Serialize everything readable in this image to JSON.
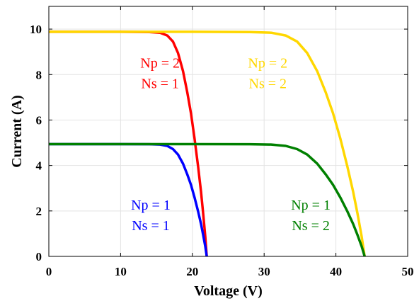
{
  "chart_data": {
    "type": "line",
    "title": "",
    "xlabel": "Voltage (V)",
    "ylabel": "Current (A)",
    "xlim": [
      0,
      50
    ],
    "ylim": [
      0,
      11
    ],
    "xticks": [
      0,
      10,
      20,
      30,
      40,
      50
    ],
    "yticks": [
      0,
      2,
      4,
      6,
      8,
      10
    ],
    "grid": true,
    "legend": "none",
    "series": [
      {
        "color": "#ff0000",
        "label_lines": [
          "Np = 2",
          "Ns = 1"
        ],
        "points": [
          [
            0,
            9.88
          ],
          [
            10,
            9.88
          ],
          [
            14,
            9.87
          ],
          [
            15.5,
            9.84
          ],
          [
            16.5,
            9.72
          ],
          [
            17.3,
            9.45
          ],
          [
            18,
            8.95
          ],
          [
            18.7,
            8.15
          ],
          [
            19.3,
            7.2
          ],
          [
            19.8,
            6.3
          ],
          [
            20.3,
            5.2
          ],
          [
            20.8,
            3.95
          ],
          [
            21.2,
            2.85
          ],
          [
            21.5,
            1.9
          ],
          [
            21.8,
            0.85
          ],
          [
            22,
            0
          ]
        ]
      },
      {
        "color": "#0000ff",
        "label_lines": [
          "Np = 1",
          "Ns = 1"
        ],
        "points": [
          [
            0,
            4.94
          ],
          [
            10,
            4.94
          ],
          [
            14,
            4.935
          ],
          [
            15.5,
            4.92
          ],
          [
            16.5,
            4.86
          ],
          [
            17.3,
            4.72
          ],
          [
            18,
            4.48
          ],
          [
            18.7,
            4.08
          ],
          [
            19.3,
            3.6
          ],
          [
            19.8,
            3.15
          ],
          [
            20.3,
            2.6
          ],
          [
            20.8,
            1.98
          ],
          [
            21.2,
            1.43
          ],
          [
            21.5,
            0.95
          ],
          [
            21.8,
            0.43
          ],
          [
            22,
            0
          ]
        ]
      },
      {
        "color": "#ffd700",
        "label_lines": [
          "Np = 2",
          "Ns = 2"
        ],
        "points": [
          [
            0,
            9.88
          ],
          [
            20,
            9.88
          ],
          [
            28,
            9.87
          ],
          [
            31,
            9.84
          ],
          [
            33,
            9.72
          ],
          [
            34.6,
            9.45
          ],
          [
            36,
            8.95
          ],
          [
            37.4,
            8.15
          ],
          [
            38.6,
            7.2
          ],
          [
            39.6,
            6.3
          ],
          [
            40.6,
            5.2
          ],
          [
            41.6,
            3.95
          ],
          [
            42.4,
            2.85
          ],
          [
            43,
            1.9
          ],
          [
            43.6,
            0.85
          ],
          [
            44,
            0
          ]
        ]
      },
      {
        "color": "#008000",
        "label_lines": [
          "Np = 1",
          "Ns = 2"
        ],
        "points": [
          [
            0,
            4.94
          ],
          [
            20,
            4.94
          ],
          [
            28,
            4.935
          ],
          [
            31,
            4.92
          ],
          [
            33,
            4.86
          ],
          [
            34.6,
            4.72
          ],
          [
            36,
            4.48
          ],
          [
            37.4,
            4.08
          ],
          [
            38.6,
            3.6
          ],
          [
            39.6,
            3.15
          ],
          [
            40.6,
            2.6
          ],
          [
            41.6,
            1.98
          ],
          [
            42.4,
            1.43
          ],
          [
            43,
            0.95
          ],
          [
            43.6,
            0.43
          ],
          [
            44,
            0
          ]
        ]
      }
    ]
  }
}
